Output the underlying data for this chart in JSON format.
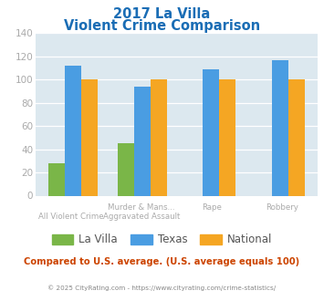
{
  "title_line1": "2017 La Villa",
  "title_line2": "Violent Crime Comparison",
  "series": {
    "La Villa": [
      28,
      45,
      0,
      0
    ],
    "Texas": [
      112,
      94,
      109,
      117
    ],
    "National": [
      100,
      100,
      100,
      100
    ]
  },
  "colors": {
    "La Villa": "#7ab648",
    "Texas": "#4a9de2",
    "National": "#f5a623"
  },
  "ylim": [
    0,
    140
  ],
  "yticks": [
    0,
    20,
    40,
    60,
    80,
    100,
    120,
    140
  ],
  "plot_bg": "#dce8ef",
  "title_color": "#1a6db5",
  "footer_text": "Compared to U.S. average. (U.S. average equals 100)",
  "footer_color": "#cc4400",
  "copyright_text": "© 2025 CityRating.com - https://www.cityrating.com/crime-statistics/",
  "copyright_color": "#888888",
  "tick_color": "#aaaaaa",
  "label_color": "#aaaaaa",
  "line1_labels": [
    "",
    "Murder & Mans...",
    "Rape",
    "Robbery"
  ],
  "line2_labels": [
    "All Violent Crime",
    "Aggravated Assault",
    "",
    ""
  ]
}
